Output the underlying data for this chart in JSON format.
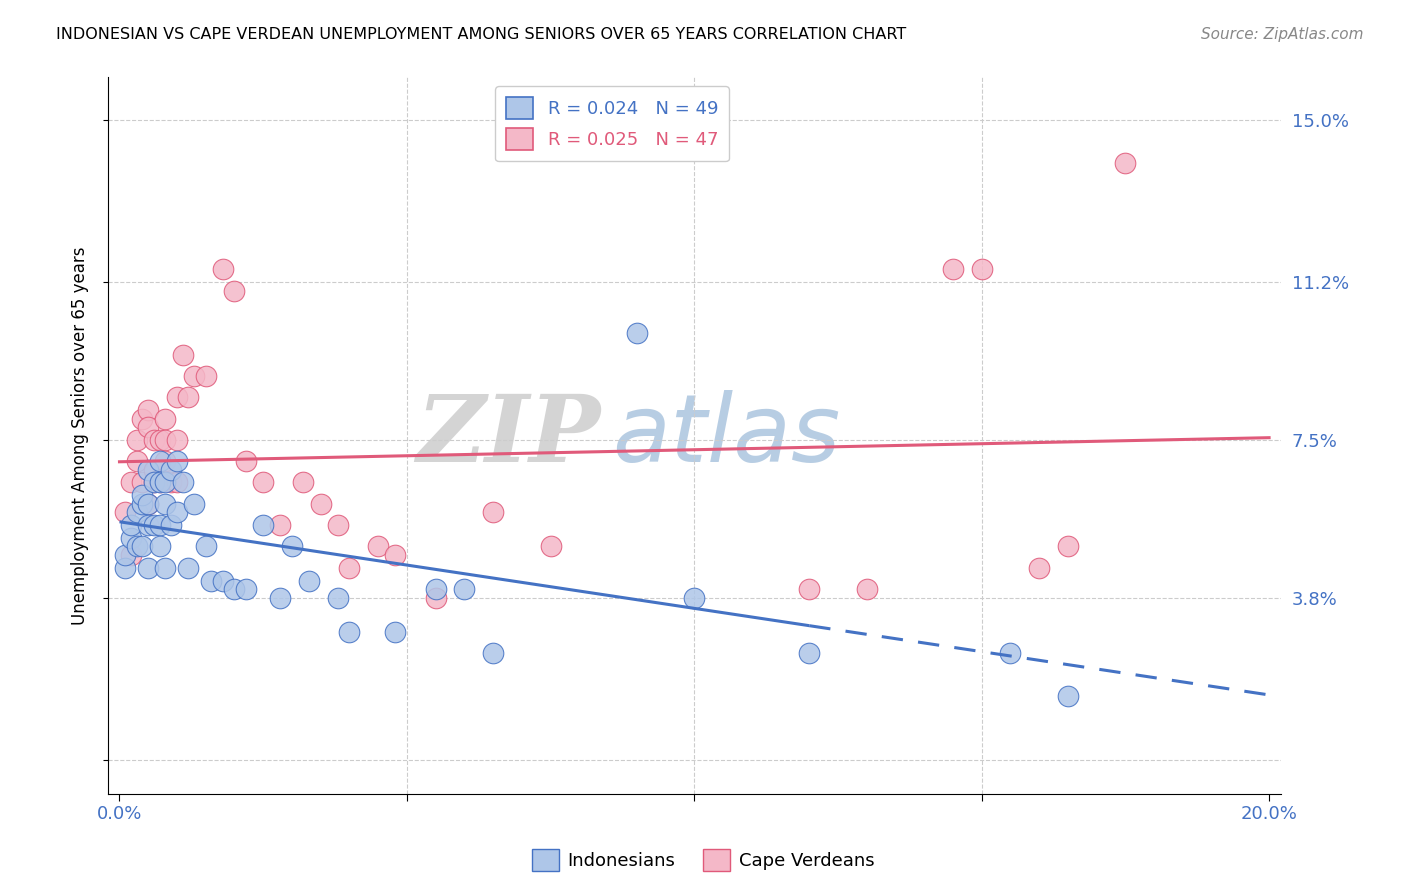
{
  "title": "INDONESIAN VS CAPE VERDEAN UNEMPLOYMENT AMONG SENIORS OVER 65 YEARS CORRELATION CHART",
  "source": "Source: ZipAtlas.com",
  "ylabel": "Unemployment Among Seniors over 65 years",
  "yticks": [
    0.0,
    0.038,
    0.075,
    0.112,
    0.15
  ],
  "ytick_labels": [
    "",
    "3.8%",
    "7.5%",
    "11.2%",
    "15.0%"
  ],
  "xlim": [
    0.0,
    0.2
  ],
  "ylim": [
    -0.008,
    0.16
  ],
  "indonesian_R": "0.024",
  "indonesian_N": "49",
  "capeverdean_R": "0.025",
  "capeverdean_N": "47",
  "indonesian_color": "#aec6e8",
  "capeverdean_color": "#f4b8c8",
  "indonesian_line_color": "#4472c4",
  "capeverdean_line_color": "#e05a7a",
  "watermark_zip": "ZIP",
  "watermark_atlas": "atlas",
  "indonesian_x": [
    0.001,
    0.001,
    0.002,
    0.002,
    0.003,
    0.003,
    0.004,
    0.004,
    0.004,
    0.005,
    0.005,
    0.005,
    0.005,
    0.006,
    0.006,
    0.007,
    0.007,
    0.007,
    0.007,
    0.008,
    0.008,
    0.008,
    0.009,
    0.009,
    0.01,
    0.01,
    0.011,
    0.012,
    0.013,
    0.015,
    0.016,
    0.018,
    0.02,
    0.022,
    0.025,
    0.028,
    0.03,
    0.033,
    0.038,
    0.04,
    0.048,
    0.055,
    0.06,
    0.065,
    0.09,
    0.1,
    0.12,
    0.155,
    0.165
  ],
  "indonesian_y": [
    0.045,
    0.048,
    0.052,
    0.055,
    0.05,
    0.058,
    0.06,
    0.05,
    0.062,
    0.06,
    0.055,
    0.068,
    0.045,
    0.055,
    0.065,
    0.07,
    0.065,
    0.055,
    0.05,
    0.065,
    0.06,
    0.045,
    0.068,
    0.055,
    0.07,
    0.058,
    0.065,
    0.045,
    0.06,
    0.05,
    0.042,
    0.042,
    0.04,
    0.04,
    0.055,
    0.038,
    0.05,
    0.042,
    0.038,
    0.03,
    0.03,
    0.04,
    0.04,
    0.025,
    0.1,
    0.038,
    0.025,
    0.025,
    0.015
  ],
  "capeverdean_x": [
    0.001,
    0.002,
    0.002,
    0.003,
    0.003,
    0.004,
    0.004,
    0.005,
    0.005,
    0.005,
    0.006,
    0.006,
    0.006,
    0.007,
    0.007,
    0.008,
    0.008,
    0.008,
    0.009,
    0.01,
    0.01,
    0.01,
    0.011,
    0.012,
    0.013,
    0.015,
    0.018,
    0.02,
    0.022,
    0.025,
    0.028,
    0.032,
    0.035,
    0.038,
    0.04,
    0.045,
    0.048,
    0.055,
    0.065,
    0.075,
    0.12,
    0.13,
    0.145,
    0.15,
    0.16,
    0.165,
    0.175
  ],
  "capeverdean_y": [
    0.058,
    0.048,
    0.065,
    0.07,
    0.075,
    0.065,
    0.08,
    0.082,
    0.078,
    0.06,
    0.068,
    0.065,
    0.075,
    0.075,
    0.065,
    0.08,
    0.075,
    0.07,
    0.065,
    0.085,
    0.075,
    0.065,
    0.095,
    0.085,
    0.09,
    0.09,
    0.115,
    0.11,
    0.07,
    0.065,
    0.055,
    0.065,
    0.06,
    0.055,
    0.045,
    0.05,
    0.048,
    0.038,
    0.058,
    0.05,
    0.04,
    0.04,
    0.115,
    0.115,
    0.045,
    0.05,
    0.14
  ],
  "line_split_x": 0.12
}
